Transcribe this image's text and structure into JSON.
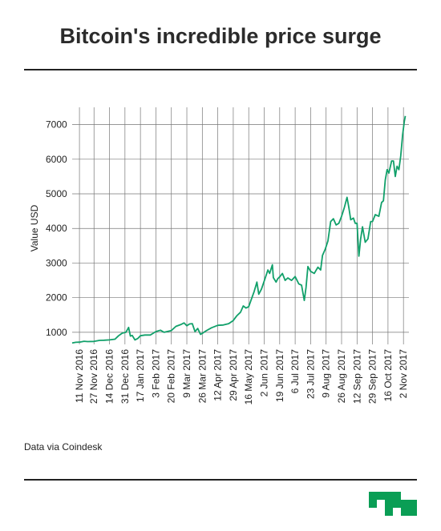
{
  "header": {
    "title": "Bitcoin's incredible price surge"
  },
  "footer": {
    "source": "Data via Coindesk"
  },
  "brand": {
    "logo_color": "#0a9e55"
  },
  "chart_data": {
    "type": "line",
    "title": "Bitcoin's incredible price surge",
    "ylabel": "Value USD",
    "xlabel": "",
    "ylim": [
      650,
      7500
    ],
    "yticks": [
      1000,
      2000,
      3000,
      4000,
      5000,
      6000,
      7000
    ],
    "xlim": [
      "2016-11-03",
      "2017-11-08"
    ],
    "xticks": [
      {
        "date": "2016-11-11",
        "label": "11 Nov 2016"
      },
      {
        "date": "2016-11-27",
        "label": "27 Nov 2016"
      },
      {
        "date": "2016-12-14",
        "label": "14 Dec 2016"
      },
      {
        "date": "2016-12-31",
        "label": "31 Dec 2016"
      },
      {
        "date": "2017-01-17",
        "label": "17 Jan 2017"
      },
      {
        "date": "2017-02-03",
        "label": "3 Feb 2017"
      },
      {
        "date": "2017-02-20",
        "label": "20 Feb 2017"
      },
      {
        "date": "2017-03-09",
        "label": "9 Mar 2017"
      },
      {
        "date": "2017-03-26",
        "label": "26 Mar 2017"
      },
      {
        "date": "2017-04-12",
        "label": "12 Apr 2017"
      },
      {
        "date": "2017-04-29",
        "label": "29 Apr 2017"
      },
      {
        "date": "2017-05-16",
        "label": "16 May 2017"
      },
      {
        "date": "2017-06-02",
        "label": "2 Jun 2017"
      },
      {
        "date": "2017-06-19",
        "label": "19 Jun 2017"
      },
      {
        "date": "2017-07-06",
        "label": "6 Jul 2017"
      },
      {
        "date": "2017-07-23",
        "label": "23 Jul 2017"
      },
      {
        "date": "2017-08-09",
        "label": "9 Aug 2017"
      },
      {
        "date": "2017-08-26",
        "label": "26 Aug 2017"
      },
      {
        "date": "2017-09-12",
        "label": "12 Sep 2017"
      },
      {
        "date": "2017-09-29",
        "label": "29 Sep 2017"
      },
      {
        "date": "2017-10-16",
        "label": "16 Oct 2017"
      },
      {
        "date": "2017-11-02",
        "label": "2 Nov 2017"
      }
    ],
    "grid": true,
    "legend": "none",
    "series": [
      {
        "color": "#11a06a",
        "points": [
          [
            "2016-11-03",
            690
          ],
          [
            "2016-11-07",
            710
          ],
          [
            "2016-11-11",
            715
          ],
          [
            "2016-11-16",
            740
          ],
          [
            "2016-11-20",
            730
          ],
          [
            "2016-11-27",
            735
          ],
          [
            "2016-12-03",
            765
          ],
          [
            "2016-12-08",
            770
          ],
          [
            "2016-12-14",
            780
          ],
          [
            "2016-12-20",
            800
          ],
          [
            "2016-12-24",
            900
          ],
          [
            "2016-12-28",
            975
          ],
          [
            "2017-01-01",
            1000
          ],
          [
            "2017-01-04",
            1140
          ],
          [
            "2017-01-06",
            890
          ],
          [
            "2017-01-08",
            910
          ],
          [
            "2017-01-11",
            780
          ],
          [
            "2017-01-14",
            820
          ],
          [
            "2017-01-17",
            900
          ],
          [
            "2017-01-22",
            920
          ],
          [
            "2017-01-28",
            920
          ],
          [
            "2017-02-03",
            1020
          ],
          [
            "2017-02-08",
            1060
          ],
          [
            "2017-02-12",
            1000
          ],
          [
            "2017-02-20",
            1050
          ],
          [
            "2017-02-25",
            1170
          ],
          [
            "2017-03-02",
            1220
          ],
          [
            "2017-03-06",
            1270
          ],
          [
            "2017-03-09",
            1190
          ],
          [
            "2017-03-12",
            1240
          ],
          [
            "2017-03-15",
            1250
          ],
          [
            "2017-03-18",
            1020
          ],
          [
            "2017-03-21",
            1110
          ],
          [
            "2017-03-24",
            940
          ],
          [
            "2017-03-26",
            970
          ],
          [
            "2017-03-30",
            1040
          ],
          [
            "2017-04-05",
            1130
          ],
          [
            "2017-04-12",
            1200
          ],
          [
            "2017-04-18",
            1210
          ],
          [
            "2017-04-24",
            1250
          ],
          [
            "2017-04-29",
            1340
          ],
          [
            "2017-05-03",
            1480
          ],
          [
            "2017-05-07",
            1580
          ],
          [
            "2017-05-10",
            1760
          ],
          [
            "2017-05-13",
            1700
          ],
          [
            "2017-05-16",
            1740
          ],
          [
            "2017-05-20",
            2040
          ],
          [
            "2017-05-22",
            2180
          ],
          [
            "2017-05-25",
            2450
          ],
          [
            "2017-05-27",
            2100
          ],
          [
            "2017-05-30",
            2250
          ],
          [
            "2017-06-02",
            2480
          ],
          [
            "2017-06-06",
            2800
          ],
          [
            "2017-06-08",
            2700
          ],
          [
            "2017-06-11",
            2950
          ],
          [
            "2017-06-12",
            2580
          ],
          [
            "2017-06-15",
            2450
          ],
          [
            "2017-06-17",
            2550
          ],
          [
            "2017-06-19",
            2600
          ],
          [
            "2017-06-22",
            2700
          ],
          [
            "2017-06-25",
            2500
          ],
          [
            "2017-06-28",
            2570
          ],
          [
            "2017-07-02",
            2500
          ],
          [
            "2017-07-06",
            2610
          ],
          [
            "2017-07-10",
            2400
          ],
          [
            "2017-07-13",
            2360
          ],
          [
            "2017-07-16",
            1920
          ],
          [
            "2017-07-18",
            2300
          ],
          [
            "2017-07-20",
            2900
          ],
          [
            "2017-07-23",
            2760
          ],
          [
            "2017-07-27",
            2700
          ],
          [
            "2017-07-31",
            2880
          ],
          [
            "2017-08-03",
            2800
          ],
          [
            "2017-08-05",
            3220
          ],
          [
            "2017-08-08",
            3400
          ],
          [
            "2017-08-11",
            3640
          ],
          [
            "2017-08-14",
            4200
          ],
          [
            "2017-08-17",
            4280
          ],
          [
            "2017-08-20",
            4100
          ],
          [
            "2017-08-23",
            4150
          ],
          [
            "2017-08-26",
            4350
          ],
          [
            "2017-08-29",
            4600
          ],
          [
            "2017-09-01",
            4900
          ],
          [
            "2017-09-03",
            4600
          ],
          [
            "2017-09-05",
            4250
          ],
          [
            "2017-09-08",
            4300
          ],
          [
            "2017-09-10",
            4150
          ],
          [
            "2017-09-12",
            4150
          ],
          [
            "2017-09-14",
            3200
          ],
          [
            "2017-09-16",
            3700
          ],
          [
            "2017-09-18",
            4050
          ],
          [
            "2017-09-21",
            3600
          ],
          [
            "2017-09-24",
            3700
          ],
          [
            "2017-09-27",
            4200
          ],
          [
            "2017-09-29",
            4200
          ],
          [
            "2017-10-02",
            4400
          ],
          [
            "2017-10-06",
            4350
          ],
          [
            "2017-10-09",
            4750
          ],
          [
            "2017-10-11",
            4800
          ],
          [
            "2017-10-13",
            5400
          ],
          [
            "2017-10-15",
            5700
          ],
          [
            "2017-10-17",
            5600
          ],
          [
            "2017-10-20",
            5950
          ],
          [
            "2017-10-22",
            5950
          ],
          [
            "2017-10-24",
            5500
          ],
          [
            "2017-10-26",
            5800
          ],
          [
            "2017-10-28",
            5700
          ],
          [
            "2017-10-30",
            6100
          ],
          [
            "2017-11-01",
            6700
          ],
          [
            "2017-11-03",
            7100
          ],
          [
            "2017-11-04",
            7250
          ]
        ]
      }
    ]
  }
}
